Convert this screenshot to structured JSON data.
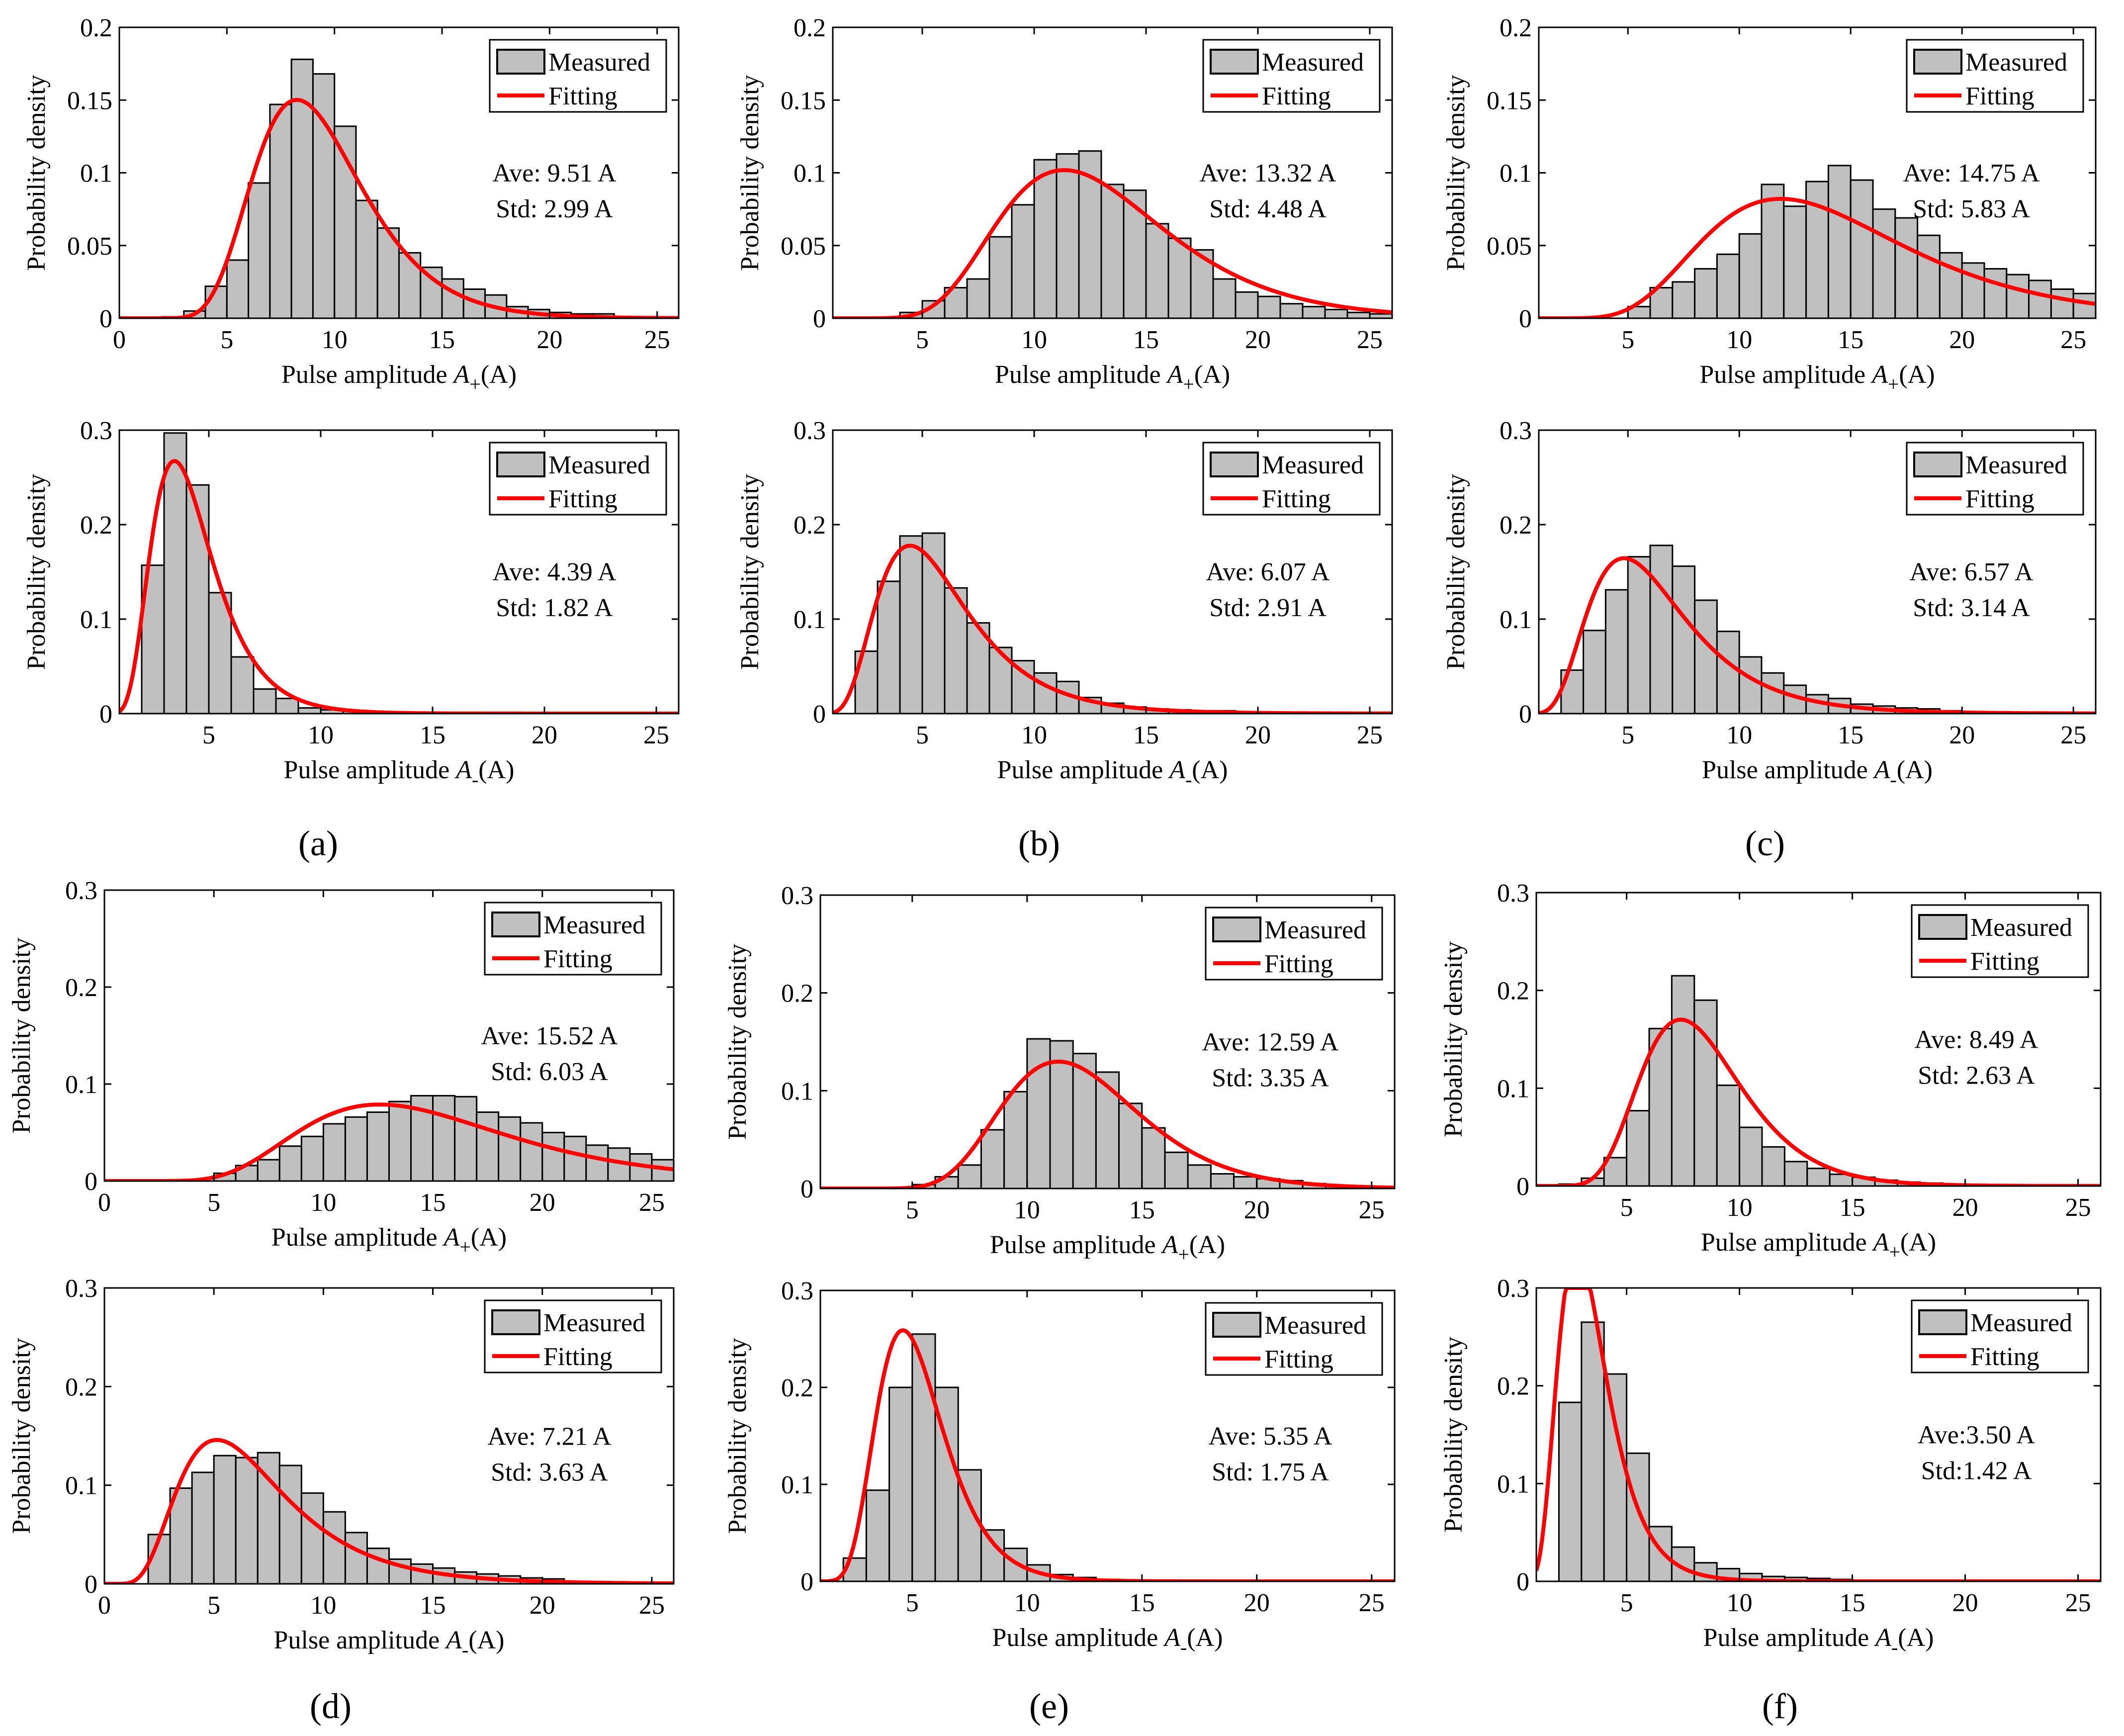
{
  "figure": {
    "labels": [
      "(a)",
      "(b)",
      "(c)",
      "(d)",
      "(e)",
      "(f)"
    ],
    "colors": {
      "bar_fill": "#c0c0c0",
      "bar_edge": "#000000",
      "fit_line": "#ff0000",
      "axes": "#000000"
    }
  },
  "chart_data": [
    {
      "id": "a-top",
      "type": "bar",
      "title": "",
      "xlabel": "Pulse amplitude",
      "xsymbol": "A",
      "xsub": "+",
      "xunit": "(A)",
      "ylabel": "Probability density",
      "xlim": [
        0,
        26
      ],
      "ylim": [
        0,
        0.2
      ],
      "xticks": [
        0,
        5,
        10,
        15,
        20,
        25
      ],
      "yticks": [
        0,
        0.05,
        0.1,
        0.15,
        0.2
      ],
      "ytick_labels": [
        "0",
        "0.05",
        "0.1",
        "0.15",
        "0.2"
      ],
      "legend": [
        "Measured",
        "Fitting"
      ],
      "annotation": [
        "Ave: 9.51 A",
        "Std: 2.99 A"
      ],
      "fit": {
        "mean": 9.51,
        "std": 2.99
      },
      "bars": {
        "start": 2,
        "width": 1,
        "values": [
          0.001,
          0.005,
          0.022,
          0.04,
          0.093,
          0.147,
          0.178,
          0.168,
          0.132,
          0.081,
          0.062,
          0.045,
          0.035,
          0.027,
          0.02,
          0.016,
          0.008,
          0.006,
          0.004,
          0.003,
          0.003,
          0.001,
          0.001,
          0.001
        ]
      }
    },
    {
      "id": "b-top",
      "type": "bar",
      "title": "",
      "xlabel": "Pulse amplitude",
      "xsymbol": "A",
      "xsub": "+",
      "xunit": "(A)",
      "ylabel": "Probability density",
      "xlim": [
        1,
        26
      ],
      "ylim": [
        0,
        0.2
      ],
      "xticks": [
        5,
        10,
        15,
        20,
        25
      ],
      "yticks": [
        0,
        0.05,
        0.1,
        0.15,
        0.2
      ],
      "ytick_labels": [
        "0",
        "0.05",
        "0.1",
        "0.15",
        "0.2"
      ],
      "legend": [
        "Measured",
        "Fitting"
      ],
      "annotation": [
        "Ave: 13.32 A",
        "Std: 4.48 A"
      ],
      "fit": {
        "mean": 13.32,
        "std": 4.48
      },
      "bars": {
        "start": 4,
        "width": 1,
        "values": [
          0.004,
          0.012,
          0.021,
          0.027,
          0.056,
          0.078,
          0.109,
          0.113,
          0.115,
          0.092,
          0.088,
          0.065,
          0.055,
          0.047,
          0.027,
          0.018,
          0.015,
          0.01,
          0.008,
          0.006,
          0.004,
          0.003
        ]
      }
    },
    {
      "id": "c-top",
      "type": "bar",
      "title": "",
      "xlabel": "Pulse amplitude",
      "xsymbol": "A",
      "xsub": "+",
      "xunit": "(A)",
      "ylabel": "Probability density",
      "xlim": [
        1,
        26
      ],
      "ylim": [
        0,
        0.2
      ],
      "xticks": [
        5,
        10,
        15,
        20,
        25
      ],
      "yticks": [
        0,
        0.05,
        0.1,
        0.15,
        0.2
      ],
      "ytick_labels": [
        "0",
        "0.05",
        "0.1",
        "0.15",
        "0.2"
      ],
      "legend": [
        "Measured",
        "Fitting"
      ],
      "annotation": [
        "Ave: 14.75 A",
        "Std: 5.83 A"
      ],
      "fit": {
        "mean": 14.75,
        "std": 5.83
      },
      "bars": {
        "start": 5,
        "width": 1,
        "values": [
          0.008,
          0.021,
          0.025,
          0.034,
          0.044,
          0.058,
          0.092,
          0.077,
          0.094,
          0.105,
          0.095,
          0.075,
          0.069,
          0.057,
          0.045,
          0.038,
          0.034,
          0.03,
          0.026,
          0.02,
          0.017,
          0.014
        ]
      }
    },
    {
      "id": "a-bottom",
      "type": "bar",
      "title": "",
      "xlabel": "Pulse amplitude",
      "xsymbol": "A",
      "xsub": "-",
      "xunit": "(A)",
      "ylabel": "Probability density",
      "xlim": [
        1,
        26
      ],
      "ylim": [
        0,
        0.3
      ],
      "xticks": [
        5,
        10,
        15,
        20,
        25
      ],
      "yticks": [
        0,
        0.1,
        0.2,
        0.3
      ],
      "ytick_labels": [
        "0",
        "0.1",
        "0.2",
        "0.3"
      ],
      "legend": [
        "Measured",
        "Fitting"
      ],
      "annotation": [
        "Ave: 4.39 A",
        "Std: 1.82 A"
      ],
      "fit": {
        "mean": 4.39,
        "std": 1.82
      },
      "bars": {
        "start": 2,
        "width": 1,
        "values": [
          0.157,
          0.297,
          0.242,
          0.128,
          0.06,
          0.026,
          0.016,
          0.006,
          0.004,
          0.003,
          0.002,
          0.001,
          0.001
        ]
      }
    },
    {
      "id": "b-bottom",
      "type": "bar",
      "title": "",
      "xlabel": "Pulse amplitude",
      "xsymbol": "A",
      "xsub": "-",
      "xunit": "(A)",
      "ylabel": "Probability density",
      "xlim": [
        1,
        26
      ],
      "ylim": [
        0,
        0.3
      ],
      "xticks": [
        5,
        10,
        15,
        20,
        25
      ],
      "yticks": [
        0,
        0.1,
        0.2,
        0.3
      ],
      "ytick_labels": [
        "0",
        "0.1",
        "0.2",
        "0.3"
      ],
      "legend": [
        "Measured",
        "Fitting"
      ],
      "annotation": [
        "Ave: 6.07 A",
        "Std: 2.91 A"
      ],
      "fit": {
        "mean": 6.07,
        "std": 2.91
      },
      "bars": {
        "start": 2,
        "width": 1,
        "values": [
          0.066,
          0.14,
          0.188,
          0.191,
          0.133,
          0.096,
          0.07,
          0.056,
          0.043,
          0.034,
          0.017,
          0.011,
          0.007,
          0.005,
          0.004,
          0.003,
          0.003,
          0.002
        ]
      }
    },
    {
      "id": "c-bottom",
      "type": "bar",
      "title": "",
      "xlabel": "Pulse amplitude",
      "xsymbol": "A",
      "xsub": "-",
      "xunit": "(A)",
      "ylabel": "Probability density",
      "xlim": [
        1,
        26
      ],
      "ylim": [
        0,
        0.3
      ],
      "xticks": [
        5,
        10,
        15,
        20,
        25
      ],
      "yticks": [
        0,
        0.1,
        0.2,
        0.3
      ],
      "ytick_labels": [
        "0",
        "0.1",
        "0.2",
        "0.3"
      ],
      "legend": [
        "Measured",
        "Fitting"
      ],
      "annotation": [
        "Ave: 6.57 A",
        "Std: 3.14 A"
      ],
      "fit": {
        "mean": 6.57,
        "std": 3.14
      },
      "bars": {
        "start": 2,
        "width": 1,
        "values": [
          0.046,
          0.088,
          0.131,
          0.166,
          0.178,
          0.156,
          0.12,
          0.087,
          0.06,
          0.043,
          0.03,
          0.02,
          0.016,
          0.01,
          0.008,
          0.006,
          0.005,
          0.003
        ]
      }
    },
    {
      "id": "d-top",
      "type": "bar",
      "title": "",
      "xlabel": "Pulse amplitude",
      "xsymbol": "A",
      "xsub": "+",
      "xunit": "(A)",
      "ylabel": "Probability density",
      "xlim": [
        0,
        26
      ],
      "ylim": [
        0,
        0.3
      ],
      "xticks": [
        0,
        5,
        10,
        15,
        20,
        25
      ],
      "yticks": [
        0,
        0.1,
        0.2,
        0.3
      ],
      "ytick_labels": [
        "0",
        "0.1",
        "0.2",
        "0.3"
      ],
      "legend": [
        "Measured",
        "Fitting"
      ],
      "annotation": [
        "Ave: 15.52 A",
        "Std: 6.03 A"
      ],
      "fit": {
        "mean": 15.52,
        "std": 6.03
      },
      "bars": {
        "start": 5,
        "width": 1,
        "values": [
          0.008,
          0.016,
          0.022,
          0.036,
          0.046,
          0.059,
          0.066,
          0.071,
          0.082,
          0.088,
          0.088,
          0.087,
          0.071,
          0.066,
          0.06,
          0.05,
          0.046,
          0.037,
          0.034,
          0.028,
          0.022,
          0.02
        ]
      }
    },
    {
      "id": "e-top",
      "type": "bar",
      "title": "",
      "xlabel": "Pulse amplitude",
      "xsymbol": "A",
      "xsub": "+",
      "xunit": "(A)",
      "ylabel": "Probability density",
      "xlim": [
        1,
        26
      ],
      "ylim": [
        0,
        0.3
      ],
      "xticks": [
        5,
        10,
        15,
        20,
        25
      ],
      "yticks": [
        0,
        0.1,
        0.2,
        0.3
      ],
      "ytick_labels": [
        "0",
        "0.1",
        "0.2",
        "0.3"
      ],
      "legend": [
        "Measured",
        "Fitting"
      ],
      "annotation": [
        "Ave: 12.59 A",
        "Std: 3.35 A"
      ],
      "fit": {
        "mean": 12.59,
        "std": 3.35
      },
      "bars": {
        "start": 5,
        "width": 1,
        "values": [
          0.004,
          0.012,
          0.024,
          0.06,
          0.099,
          0.153,
          0.151,
          0.138,
          0.119,
          0.087,
          0.062,
          0.037,
          0.024,
          0.015,
          0.012,
          0.01,
          0.008,
          0.005,
          0.003,
          0.002,
          0.002
        ]
      }
    },
    {
      "id": "f-top",
      "type": "bar",
      "title": "",
      "xlabel": "Pulse amplitude",
      "xsymbol": "A",
      "xsub": "+",
      "xunit": "(A)",
      "ylabel": "Probability density",
      "xlim": [
        1,
        26
      ],
      "ylim": [
        0,
        0.3
      ],
      "xticks": [
        5,
        10,
        15,
        20,
        25
      ],
      "yticks": [
        0,
        0.1,
        0.2,
        0.3
      ],
      "ytick_labels": [
        "0",
        "0.1",
        "0.2",
        "0.3"
      ],
      "legend": [
        "Measured",
        "Fitting"
      ],
      "annotation": [
        "Ave: 8.49 A",
        "Std: 2.63 A"
      ],
      "fit": {
        "mean": 8.49,
        "std": 2.63
      },
      "bars": {
        "start": 2,
        "width": 1,
        "values": [
          0.002,
          0.008,
          0.029,
          0.077,
          0.161,
          0.215,
          0.19,
          0.103,
          0.06,
          0.04,
          0.025,
          0.018,
          0.012,
          0.009,
          0.006,
          0.004,
          0.003,
          0.002
        ]
      }
    },
    {
      "id": "d-bottom",
      "type": "bar",
      "title": "",
      "xlabel": "Pulse amplitude",
      "xsymbol": "A",
      "xsub": "-",
      "xunit": "(A)",
      "ylabel": "Probability density",
      "xlim": [
        0,
        26
      ],
      "ylim": [
        0,
        0.3
      ],
      "xticks": [
        0,
        5,
        10,
        15,
        20,
        25
      ],
      "yticks": [
        0,
        0.1,
        0.2,
        0.3
      ],
      "ytick_labels": [
        "0",
        "0.1",
        "0.2",
        "0.3"
      ],
      "legend": [
        "Measured",
        "Fitting"
      ],
      "annotation": [
        "Ave: 7.21 A",
        "Std: 3.63 A"
      ],
      "fit": {
        "mean": 7.21,
        "std": 3.63
      },
      "bars": {
        "start": 2,
        "width": 1,
        "values": [
          0.05,
          0.097,
          0.113,
          0.13,
          0.128,
          0.133,
          0.12,
          0.092,
          0.073,
          0.052,
          0.036,
          0.025,
          0.02,
          0.016,
          0.012,
          0.01,
          0.008,
          0.006,
          0.005
        ]
      }
    },
    {
      "id": "e-bottom",
      "type": "bar",
      "title": "",
      "xlabel": "Pulse amplitude",
      "xsymbol": "A",
      "xsub": "-",
      "xunit": "(A)",
      "ylabel": "Probability density",
      "xlim": [
        1,
        26
      ],
      "ylim": [
        0,
        0.3
      ],
      "xticks": [
        5,
        10,
        15,
        20,
        25
      ],
      "yticks": [
        0,
        0.1,
        0.2,
        0.3
      ],
      "ytick_labels": [
        "0",
        "0.1",
        "0.2",
        "0.3"
      ],
      "legend": [
        "Measured",
        "Fitting"
      ],
      "annotation": [
        "Ave: 5.35 A",
        "Std: 1.75 A"
      ],
      "fit": {
        "mean": 5.35,
        "std": 1.75
      },
      "bars": {
        "start": 2,
        "width": 1,
        "values": [
          0.024,
          0.094,
          0.2,
          0.255,
          0.2,
          0.115,
          0.053,
          0.034,
          0.017,
          0.007,
          0.004,
          0.002
        ]
      }
    },
    {
      "id": "f-bottom",
      "type": "bar",
      "title": "",
      "xlabel": "Pulse amplitude",
      "xsymbol": "A",
      "xsub": "-",
      "xunit": "(A)",
      "ylabel": "Probability density",
      "xlim": [
        1,
        26
      ],
      "ylim": [
        0,
        0.3
      ],
      "xticks": [
        5,
        10,
        15,
        20,
        25
      ],
      "yticks": [
        0,
        0.1,
        0.2,
        0.3
      ],
      "ytick_labels": [
        "0",
        "0.1",
        "0.2",
        "0.3"
      ],
      "legend": [
        "Measured",
        "Fitting"
      ],
      "annotation": [
        "Ave:3.50 A",
        "Std:1.42 A"
      ],
      "fit": {
        "mean": 3.5,
        "std": 1.42
      },
      "bars": {
        "start": 2,
        "width": 1,
        "values": [
          0.183,
          0.265,
          0.212,
          0.131,
          0.056,
          0.035,
          0.019,
          0.013,
          0.008,
          0.005,
          0.004,
          0.003,
          0.002
        ]
      }
    }
  ]
}
